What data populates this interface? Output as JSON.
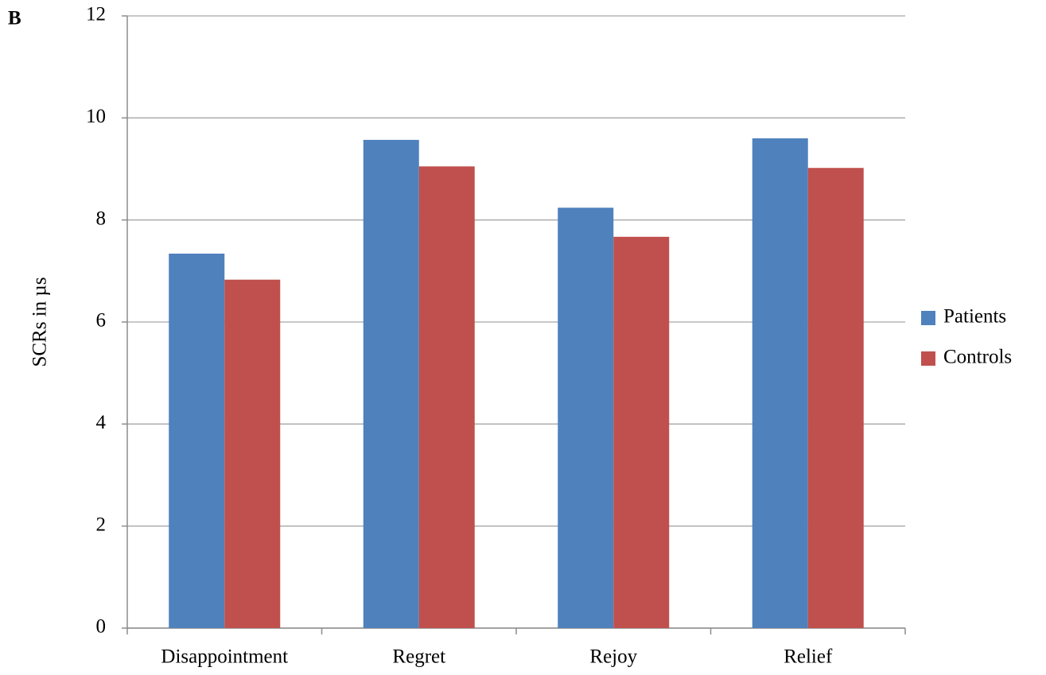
{
  "chart_data": {
    "type": "bar",
    "panel_label": "B",
    "y_label": "SCRs in µs",
    "categories": [
      "Disappointment",
      "Regret",
      "Rejoy",
      "Relief"
    ],
    "series": [
      {
        "name": "Patients",
        "color": "#4f81bd",
        "values": [
          7.34,
          9.57,
          8.24,
          9.6
        ]
      },
      {
        "name": "Controls",
        "color": "#c0504d",
        "values": [
          6.83,
          9.05,
          7.67,
          9.02
        ]
      }
    ],
    "ylim": [
      0,
      12
    ],
    "yticks": [
      0,
      2,
      4,
      6,
      8,
      10,
      12
    ],
    "grid": true,
    "legend": "right"
  }
}
